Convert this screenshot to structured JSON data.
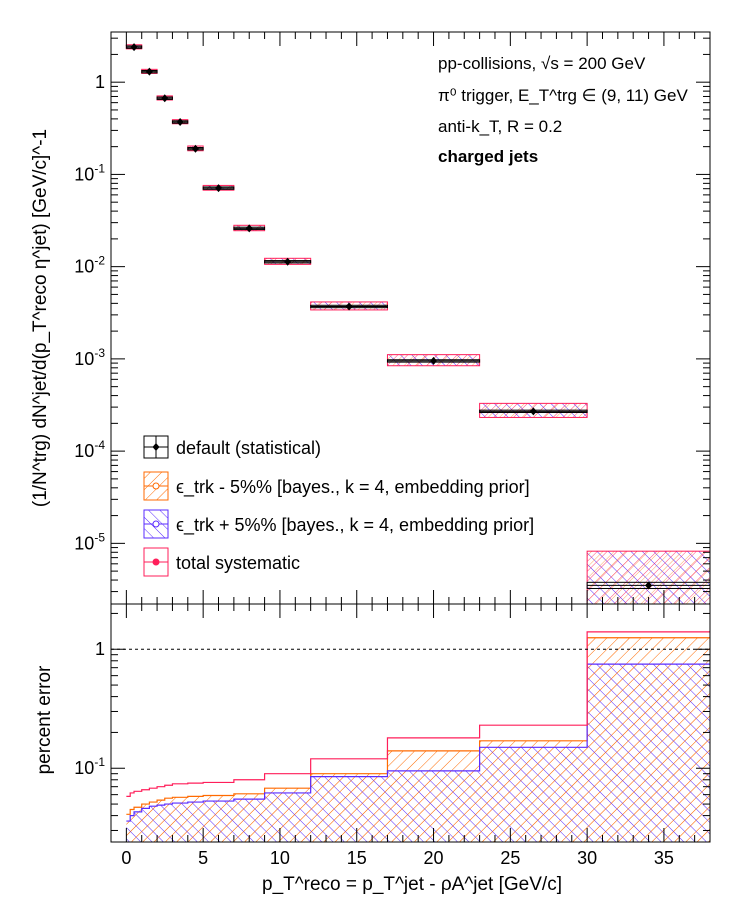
{
  "chart_data": [
    {
      "type": "scatter",
      "yscale": "log",
      "xlim": [
        -1,
        38
      ],
      "ylim": [
        2.2e-06,
        3.5
      ],
      "ylabel": "(1/N^trg) dN^jet/d(p_T^reco η^jet) [GeV/c]^-1",
      "y_tick_labels": [
        "1",
        "10^-1",
        "10^-2",
        "10^-3",
        "10^-4",
        "10^-5"
      ],
      "annotations": [
        "pp-collisions, √s = 200 GeV",
        "π⁰ trigger, E_T^trg ∈ (9, 11) GeV",
        "anti-k_T, R = 0.2",
        "charged jets"
      ],
      "legend_position": "bottom-left",
      "legend": [
        "default (statistical)",
        "ϵ_trk - 5%% [bayes., k = 4, embedding prior]",
        "ϵ_trk + 5%% [bayes., k = 4, embedding prior]",
        "total systematic"
      ],
      "bins": [
        {
          "x": 0.5,
          "lo": 0,
          "hi": 1,
          "y": 2.4,
          "sys": 0.06
        },
        {
          "x": 1.5,
          "lo": 1,
          "hi": 2,
          "y": 1.3,
          "sys": 0.06
        },
        {
          "x": 2.5,
          "lo": 2,
          "hi": 3,
          "y": 0.67,
          "sys": 0.06
        },
        {
          "x": 3.5,
          "lo": 3,
          "hi": 4,
          "y": 0.37,
          "sys": 0.06
        },
        {
          "x": 4.5,
          "lo": 4,
          "hi": 5,
          "y": 0.19,
          "sys": 0.07
        },
        {
          "x": 6.0,
          "lo": 5,
          "hi": 7,
          "y": 0.071,
          "sys": 0.07
        },
        {
          "x": 8.0,
          "lo": 7,
          "hi": 9,
          "y": 0.026,
          "sys": 0.08
        },
        {
          "x": 10.5,
          "lo": 9,
          "hi": 12,
          "y": 0.0113,
          "sys": 0.09
        },
        {
          "x": 14.5,
          "lo": 12,
          "hi": 17,
          "y": 0.0037,
          "sys": 0.12
        },
        {
          "x": 20.0,
          "lo": 17,
          "hi": 23,
          "y": 0.00095,
          "sys": 0.17
        },
        {
          "x": 26.5,
          "lo": 23,
          "hi": 30,
          "y": 0.00027,
          "sys": 0.22
        },
        {
          "x": 34.0,
          "lo": 30,
          "hi": 38,
          "y": 3.5e-06,
          "sys": 1.35
        }
      ],
      "colors": {
        "default": "#000000",
        "minus": "#ff6a00",
        "plus": "#5a2bff",
        "total": "#ff1e5a"
      }
    },
    {
      "type": "area",
      "yscale": "log",
      "xlim": [
        -1,
        38
      ],
      "ylim": [
        0.024,
        2.4
      ],
      "xlabel": "p_T^reco = p_T^jet - ρA^jet [GeV/c]",
      "ylabel": "percent error",
      "x_tick_labels": [
        "0",
        "5",
        "10",
        "15",
        "20",
        "25",
        "30",
        "35"
      ],
      "y_tick_labels": [
        "1",
        "10^-1"
      ],
      "reference_line": 1,
      "edges": [
        0,
        0.25,
        0.5,
        1,
        1.5,
        2,
        2.5,
        3,
        4,
        5,
        7,
        9,
        12,
        17,
        23,
        30,
        38
      ],
      "series": [
        {
          "name": "ϵ_trk - 5%% [bayes., k = 4, embedding prior]",
          "values": [
            0.041,
            0.045,
            0.047,
            0.05,
            0.052,
            0.054,
            0.056,
            0.057,
            0.058,
            0.059,
            0.061,
            0.068,
            0.09,
            0.14,
            0.17,
            1.25
          ]
        },
        {
          "name": "ϵ_trk + 5%% [bayes., k = 4, embedding prior]",
          "values": [
            0.036,
            0.04,
            0.043,
            0.046,
            0.048,
            0.049,
            0.05,
            0.051,
            0.052,
            0.053,
            0.055,
            0.062,
            0.085,
            0.095,
            0.15,
            0.75
          ]
        },
        {
          "name": "total systematic",
          "values": [
            0.058,
            0.062,
            0.064,
            0.066,
            0.068,
            0.07,
            0.072,
            0.074,
            0.075,
            0.076,
            0.08,
            0.09,
            0.12,
            0.18,
            0.23,
            1.4
          ]
        }
      ]
    }
  ]
}
